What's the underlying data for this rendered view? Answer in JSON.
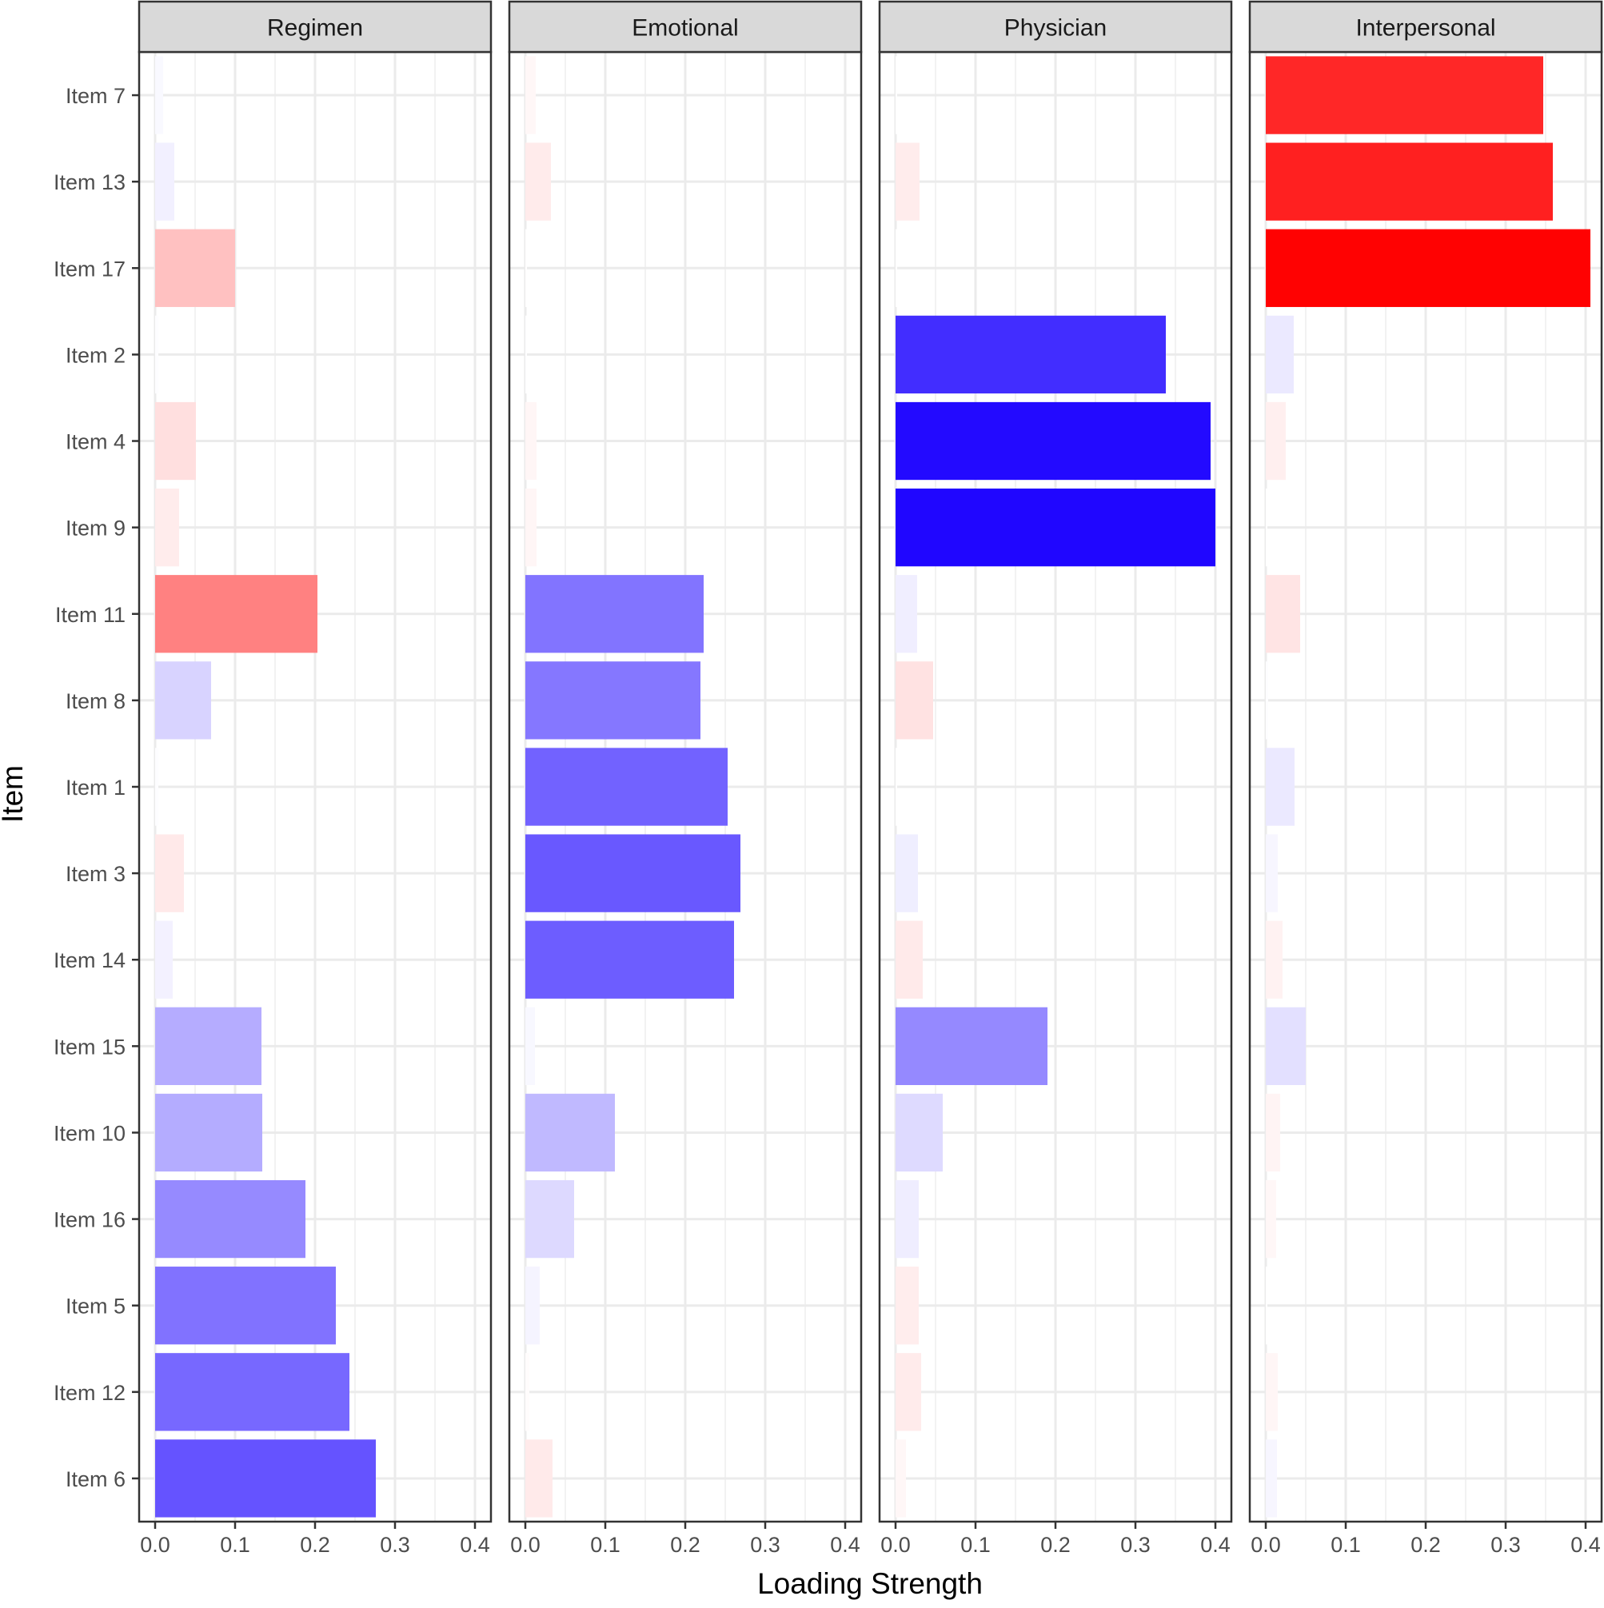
{
  "chart_data": {
    "type": "bar",
    "orientation": "horizontal",
    "faceted": true,
    "xlabel": "Loading Strength",
    "ylabel": "Item",
    "xlim": [
      -0.02,
      0.42
    ],
    "x_ticks": [
      0.0,
      0.1,
      0.2,
      0.3,
      0.4
    ],
    "x_tick_labels": [
      "0.0",
      "0.1",
      "0.2",
      "0.3",
      "0.4"
    ],
    "grid": true,
    "color_scale": {
      "negative_color": "#ff0000",
      "positive_color": "#1a00ff",
      "low_color": "#ffffff"
    },
    "categories": [
      "Item 7",
      "Item 13",
      "Item 17",
      "Item 2",
      "Item 4",
      "Item 9",
      "Item 11",
      "Item 8",
      "Item 1",
      "Item 3",
      "Item 14",
      "Item 15",
      "Item 10",
      "Item 16",
      "Item 5",
      "Item 12",
      "Item 6"
    ],
    "panels": [
      {
        "name": "Regimen",
        "values": [
          0.01,
          0.024,
          0.1,
          0.004,
          0.051,
          0.03,
          0.203,
          0.07,
          0.004,
          0.036,
          0.022,
          0.133,
          0.134,
          0.188,
          0.226,
          0.243,
          0.276
        ],
        "signs": [
          "pos",
          "pos",
          "neg",
          "pos",
          "neg",
          "neg",
          "neg",
          "pos",
          "pos",
          "neg",
          "pos",
          "pos",
          "pos",
          "pos",
          "pos",
          "pos",
          "pos"
        ]
      },
      {
        "name": "Emotional",
        "values": [
          0.013,
          0.032,
          0.002,
          0.002,
          0.014,
          0.014,
          0.223,
          0.219,
          0.253,
          0.269,
          0.261,
          0.012,
          0.112,
          0.061,
          0.018,
          0.005,
          0.034
        ],
        "signs": [
          "neg",
          "neg",
          "neg",
          "pos",
          "neg",
          "neg",
          "pos",
          "pos",
          "pos",
          "pos",
          "pos",
          "pos",
          "pos",
          "pos",
          "pos",
          "neg",
          "neg"
        ]
      },
      {
        "name": "Physician",
        "values": [
          0.002,
          0.03,
          0.002,
          0.338,
          0.394,
          0.4,
          0.027,
          0.047,
          0.002,
          0.028,
          0.034,
          0.19,
          0.059,
          0.029,
          0.029,
          0.032,
          0.013
        ],
        "signs": [
          "pos",
          "neg",
          "neg",
          "pos",
          "pos",
          "pos",
          "pos",
          "neg",
          "pos",
          "pos",
          "neg",
          "pos",
          "pos",
          "pos",
          "neg",
          "neg",
          "neg"
        ]
      },
      {
        "name": "Interpersonal",
        "values": [
          0.347,
          0.359,
          0.406,
          0.035,
          0.025,
          0.002,
          0.043,
          0.003,
          0.036,
          0.015,
          0.021,
          0.05,
          0.018,
          0.013,
          0.002,
          0.015,
          0.014
        ],
        "signs": [
          "neg",
          "neg",
          "neg",
          "pos",
          "neg",
          "pos",
          "neg",
          "pos",
          "pos",
          "pos",
          "neg",
          "pos",
          "neg",
          "neg",
          "pos",
          "neg",
          "pos"
        ]
      }
    ]
  }
}
